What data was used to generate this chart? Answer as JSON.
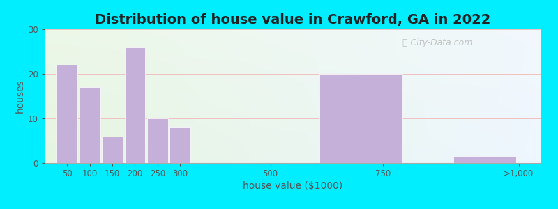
{
  "title": "Distribution of house value in Crawford, GA in 2022",
  "xlabel": "house value ($1000)",
  "ylabel": "houses",
  "bar_values": [
    22,
    17,
    6,
    26,
    10,
    8,
    0,
    20,
    1.5
  ],
  "bar_color": "#c4b0d8",
  "bar_lefts": [
    25,
    75,
    125,
    175,
    225,
    275,
    450,
    600,
    900
  ],
  "bar_widths": [
    50,
    50,
    50,
    50,
    50,
    50,
    100,
    200,
    150
  ],
  "ylim": [
    0,
    30
  ],
  "xlim": [
    0,
    1100
  ],
  "yticks": [
    0,
    10,
    20,
    30
  ],
  "xtick_positions": [
    50,
    100,
    150,
    200,
    250,
    300,
    500,
    750,
    1050
  ],
  "xtick_labels": [
    "50",
    "100",
    "150",
    "200",
    "250",
    "300",
    "500",
    "750",
    ">1,000"
  ],
  "bg_left_color": "#e6f5e0",
  "bg_right_color": "#eef6ff",
  "outer_bg": "#00eeff",
  "watermark_text": "City-Data.com",
  "title_fontsize": 14,
  "label_fontsize": 10,
  "tick_fontsize": 8.5
}
